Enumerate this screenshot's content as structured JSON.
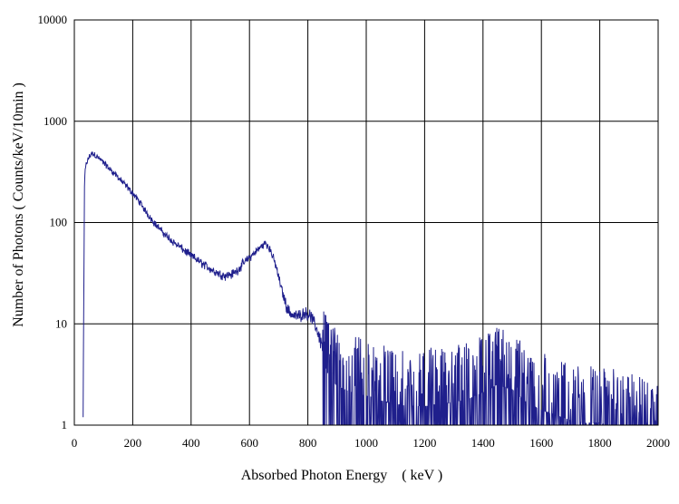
{
  "chart_data": {
    "type": "line",
    "title": "",
    "xlabel": "Absorbed Photon Energy　( keV )",
    "ylabel": "Number  of Photons ( Counts/keV/10min  )",
    "xlim": [
      0,
      2000
    ],
    "ylim": [
      1,
      10000
    ],
    "yscale": "log",
    "grid": true,
    "x_ticks": [
      0,
      200,
      400,
      600,
      800,
      1000,
      1200,
      1400,
      1600,
      1800,
      2000
    ],
    "y_ticks": [
      1,
      10,
      100,
      1000,
      10000
    ],
    "x_tick_labels": [
      "0",
      "200",
      "400",
      "600",
      "800",
      "1000",
      "1200",
      "1400",
      "1600",
      "1800",
      "2000"
    ],
    "y_tick_labels": [
      "1",
      "10",
      "100",
      "1000",
      "10000"
    ],
    "line_color": "#1f1f8c",
    "series": [
      {
        "x": [
          30,
          35,
          40,
          50,
          60,
          70,
          80,
          100,
          120,
          140,
          160,
          180,
          200,
          220,
          240,
          260,
          280,
          300,
          320,
          340,
          360,
          380,
          400,
          420,
          440,
          460,
          480,
          500,
          520,
          540,
          560,
          580,
          600,
          620,
          640,
          655,
          670,
          690,
          710,
          730,
          750,
          770,
          790,
          810,
          830,
          850,
          870,
          900,
          950,
          1000,
          1050,
          1100,
          1150,
          1200,
          1250,
          1300,
          1350,
          1400,
          1450,
          1500,
          1550,
          1600,
          1650,
          1700,
          1750,
          1800,
          1850,
          1900,
          1950,
          2000
        ],
        "values": [
          1.2,
          280,
          370,
          440,
          480,
          470,
          440,
          390,
          340,
          300,
          260,
          225,
          195,
          165,
          135,
          112,
          95,
          82,
          72,
          64,
          58,
          52,
          47,
          43,
          39,
          36,
          33,
          31,
          30,
          31,
          34,
          40,
          45,
          51,
          58,
          63,
          55,
          38,
          22,
          14,
          12,
          12,
          13,
          12,
          9,
          6,
          4.5,
          3.5,
          3,
          2.8,
          2.5,
          2.3,
          2.2,
          2.2,
          2.3,
          2.4,
          2.6,
          3,
          3.6,
          3.2,
          2.4,
          2,
          1.8,
          1.6,
          1.5,
          1.5,
          1.4,
          1.3,
          1.2,
          1.05
        ]
      }
    ]
  }
}
